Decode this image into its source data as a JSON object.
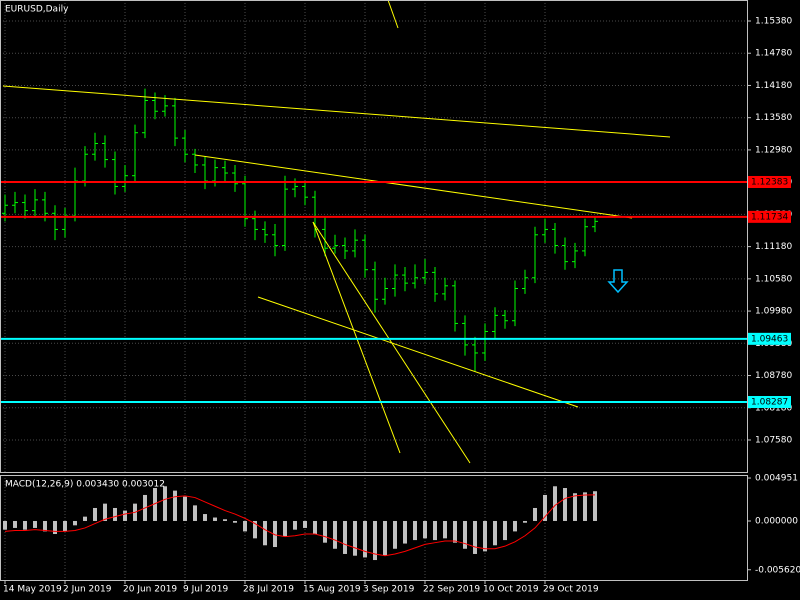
{
  "chart_data": {
    "type": "ohlc",
    "title": "EURUSD,Daily",
    "color": "#00ff00",
    "grid": true,
    "categories": [
      "14 May 2019",
      null,
      null,
      null,
      null,
      null,
      "2 Jun 2019",
      null,
      null,
      null,
      null,
      null,
      "20 Jun 2019",
      null,
      null,
      null,
      null,
      null,
      "9 Jul 2019",
      null,
      null,
      null,
      null,
      null,
      "28 Jul 2019",
      null,
      null,
      null,
      null,
      null,
      "15 Aug 2019",
      null,
      null,
      null,
      null,
      null,
      "3 Sep 2019",
      null,
      null,
      null,
      null,
      null,
      "22 Sep 2019",
      null,
      null,
      null,
      null,
      null,
      "10 Oct 2019",
      null,
      null,
      null,
      null,
      null,
      "29 Oct 2019",
      null,
      null,
      null,
      null,
      null
    ],
    "open": [
      1.118,
      1.1195,
      1.12,
      1.1185,
      1.1205,
      1.118,
      1.115,
      1.1175,
      1.124,
      1.129,
      1.131,
      1.128,
      1.123,
      1.125,
      1.133,
      1.139,
      1.137,
      1.138,
      1.132,
      1.129,
      1.127,
      1.124,
      1.1265,
      1.1255,
      1.1235,
      1.117,
      1.115,
      1.114,
      1.112,
      1.1225,
      1.123,
      1.121,
      1.115,
      1.1115,
      1.112,
      1.111,
      1.113,
      1.1075,
      1.102,
      1.104,
      1.1065,
      1.105,
      1.106,
      1.107,
      1.103,
      1.1045,
      1.0975,
      1.0935,
      1.092,
      1.096,
      1.099,
      1.098,
      1.104,
      1.106,
      1.114,
      1.115,
      1.112,
      1.109,
      1.111,
      1.1155
    ],
    "high": [
      1.1215,
      1.122,
      1.1215,
      1.1225,
      1.122,
      1.1195,
      1.119,
      1.1265,
      1.1305,
      1.133,
      1.1325,
      1.1295,
      1.127,
      1.1345,
      1.1412,
      1.1405,
      1.14,
      1.1395,
      1.1335,
      1.13,
      1.1285,
      1.128,
      1.1278,
      1.127,
      1.125,
      1.1185,
      1.1165,
      1.116,
      1.125,
      1.1245,
      1.124,
      1.1222,
      1.1175,
      1.114,
      1.1135,
      1.115,
      1.114,
      1.109,
      1.106,
      1.1085,
      1.108,
      1.1085,
      1.1095,
      1.108,
      1.106,
      1.1055,
      1.099,
      1.095,
      1.0975,
      1.1005,
      1.1,
      1.1055,
      1.1075,
      1.1155,
      1.117,
      1.1162,
      1.1135,
      1.1125,
      1.117,
      1.1175
    ],
    "low": [
      1.1165,
      1.118,
      1.117,
      1.1172,
      1.1165,
      1.113,
      1.1135,
      1.1165,
      1.123,
      1.1278,
      1.1265,
      1.1215,
      1.122,
      1.124,
      1.132,
      1.1355,
      1.136,
      1.1305,
      1.1275,
      1.1255,
      1.1225,
      1.123,
      1.124,
      1.122,
      1.1155,
      1.113,
      1.1125,
      1.11,
      1.111,
      1.121,
      1.1195,
      1.1135,
      1.11,
      1.1105,
      1.1095,
      1.1098,
      1.106,
      1.0995,
      1.101,
      1.1025,
      1.1035,
      1.104,
      1.1048,
      1.1015,
      1.1018,
      1.096,
      1.0915,
      1.0885,
      1.0905,
      1.0945,
      1.0965,
      1.097,
      1.103,
      1.105,
      1.1125,
      1.1105,
      1.1075,
      1.1078,
      1.11,
      1.1145
    ],
    "close": [
      1.1195,
      1.12,
      1.1185,
      1.1205,
      1.118,
      1.115,
      1.1175,
      1.124,
      1.129,
      1.131,
      1.128,
      1.123,
      1.125,
      1.133,
      1.139,
      1.137,
      1.138,
      1.132,
      1.129,
      1.127,
      1.124,
      1.1265,
      1.1255,
      1.1235,
      1.117,
      1.115,
      1.114,
      1.112,
      1.1225,
      1.123,
      1.121,
      1.115,
      1.1115,
      1.112,
      1.111,
      1.113,
      1.1075,
      1.102,
      1.104,
      1.1065,
      1.105,
      1.106,
      1.107,
      1.103,
      1.1045,
      1.0975,
      1.0935,
      1.092,
      1.096,
      1.099,
      1.098,
      1.104,
      1.106,
      1.114,
      1.115,
      1.112,
      1.109,
      1.111,
      1.1155,
      1.1165
    ],
    "ylim": [
      1.06984,
      1.15771
    ],
    "yticks": [
      {
        "value": 1.1538,
        "label": "1.15380"
      },
      {
        "value": 1.1478,
        "label": "1.14780"
      },
      {
        "value": 1.1418,
        "label": "1.14180"
      },
      {
        "value": 1.1358,
        "label": "1.13580"
      },
      {
        "value": 1.1298,
        "label": "1.12980"
      },
      {
        "value": 1.1238,
        "label": "1.12380"
      },
      {
        "value": 1.1178,
        "label": "1.11780"
      },
      {
        "value": 1.1118,
        "label": "1.11180"
      },
      {
        "value": 1.1058,
        "label": "1.10580"
      },
      {
        "value": 1.0998,
        "label": "1.09980"
      },
      {
        "value": 1.0938,
        "label": "1.09380"
      },
      {
        "value": 1.0878,
        "label": "1.08780"
      },
      {
        "value": 1.0818,
        "label": "1.08180"
      },
      {
        "value": 1.0758,
        "label": "1.07580"
      }
    ],
    "levels": [
      {
        "value": 1.12383,
        "color": "#ff0000"
      },
      {
        "value": 1.11734,
        "color": "#ff0000"
      },
      {
        "value": 1.09463,
        "color": "#00ffff"
      },
      {
        "value": 1.08287,
        "color": "#00ffff"
      }
    ],
    "indicator": {
      "title": "MACD(12,26,9) 0.003430 0.003012",
      "histogram": {
        "color": "#c0c0c0",
        "values": [
          -0.001,
          -0.0008,
          -0.001,
          -0.0008,
          -0.0012,
          -0.0015,
          -0.0012,
          -0.0005,
          0.0005,
          0.0015,
          0.002,
          0.0015,
          0.0012,
          0.002,
          0.003,
          0.0038,
          0.004,
          0.0035,
          0.0028,
          0.0018,
          0.0008,
          0.0004,
          0.0002,
          -0.0002,
          -0.0012,
          -0.002,
          -0.0028,
          -0.003,
          -0.0018,
          -0.001,
          -0.0008,
          -0.0015,
          -0.0025,
          -0.0032,
          -0.0038,
          -0.004,
          -0.0042,
          -0.0045,
          -0.004,
          -0.0032,
          -0.0026,
          -0.0022,
          -0.002,
          -0.0022,
          -0.002,
          -0.0025,
          -0.0032,
          -0.0038,
          -0.0035,
          -0.0028,
          -0.0022,
          -0.0012,
          -0.0002,
          0.0015,
          0.003,
          0.004,
          0.0038,
          0.0032,
          0.0033,
          0.00343
        ]
      },
      "signal": {
        "color": "#ff0000",
        "values": [
          -0.0012,
          -0.0011,
          -0.0011,
          -0.001,
          -0.0011,
          -0.0012,
          -0.0012,
          -0.0011,
          -0.0008,
          -0.0003,
          0.0002,
          0.0005,
          0.0008,
          0.001,
          0.0015,
          0.002,
          0.0025,
          0.0028,
          0.0029,
          0.0027,
          0.0022,
          0.0017,
          0.0012,
          0.0008,
          0.0003,
          -0.0003,
          -0.001,
          -0.0016,
          -0.0018,
          -0.0017,
          -0.0015,
          -0.0015,
          -0.0018,
          -0.0022,
          -0.0027,
          -0.0031,
          -0.0035,
          -0.0038,
          -0.004,
          -0.0038,
          -0.0035,
          -0.0031,
          -0.0027,
          -0.0025,
          -0.0023,
          -0.0023,
          -0.0026,
          -0.003,
          -0.0032,
          -0.0032,
          -0.0029,
          -0.0024,
          -0.0017,
          -0.0008,
          0.0005,
          0.0018,
          0.0026,
          0.0029,
          0.003,
          0.003012
        ]
      },
      "ylim": [
        -0.0068,
        0.0053
      ],
      "yticks": [
        {
          "value": 0.004951,
          "label": "0.004951"
        },
        {
          "value": 0,
          "label": "0.000000"
        },
        {
          "value": -0.00562,
          "label": "-0.005620"
        }
      ]
    }
  }
}
